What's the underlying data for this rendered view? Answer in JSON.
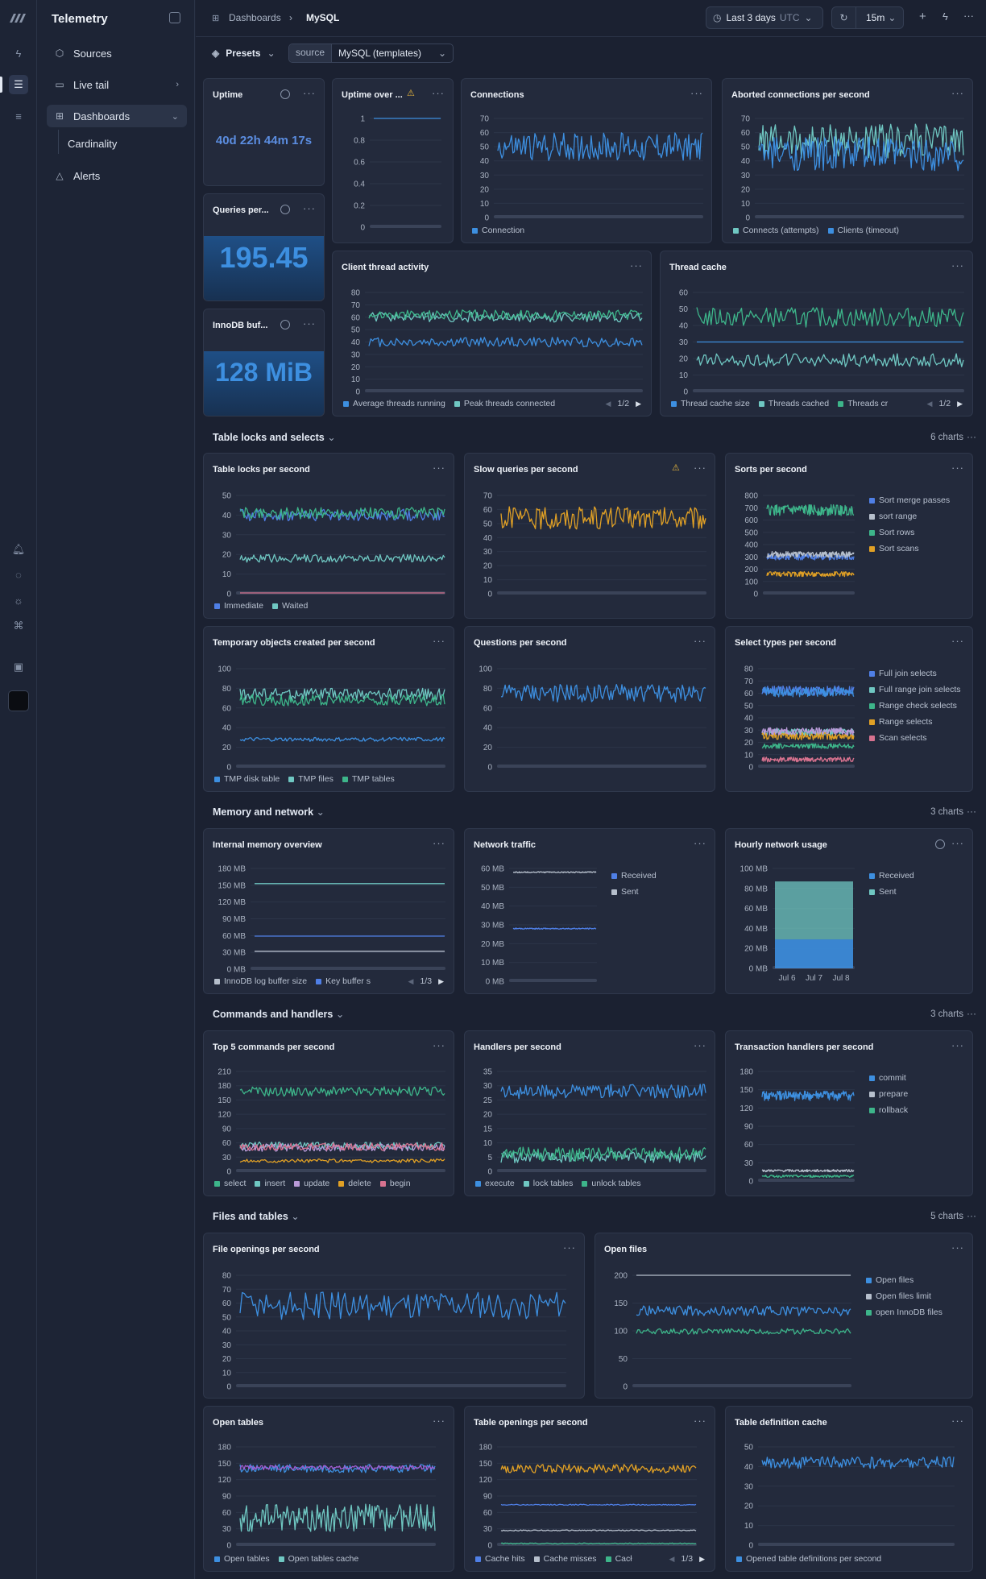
{
  "app": {
    "title": "Telemetry"
  },
  "sidebar": {
    "items": [
      {
        "label": "Sources",
        "icon": "cube-icon"
      },
      {
        "label": "Live tail",
        "icon": "terminal-icon"
      },
      {
        "label": "Dashboards",
        "icon": "dashboard-icon"
      },
      {
        "label": "Cardinality"
      },
      {
        "label": "Alerts",
        "icon": "alert-triangle-icon"
      }
    ]
  },
  "breadcrumb": {
    "parent": "Dashboards",
    "current": "MySQL",
    "separator": "›"
  },
  "toolbar": {
    "time_range": "Last 3 days",
    "timezone": "UTC",
    "refresh_interval": "15m"
  },
  "filters": {
    "presets_label": "Presets",
    "source_key": "source",
    "source_value": "MySQL (templates)"
  },
  "stats": {
    "uptime": {
      "title": "Uptime",
      "value": "40d 22h 44m 17s"
    },
    "queries": {
      "title": "Queries per...",
      "value": "195.45"
    },
    "innodb": {
      "title": "InnoDB buf...",
      "value": "128 MiB"
    }
  },
  "sections": [
    {
      "title": "Table locks and selects",
      "count": "6 charts"
    },
    {
      "title": "Memory and network",
      "count": "3 charts"
    },
    {
      "title": "Commands and handlers",
      "count": "3 charts"
    },
    {
      "title": "Files and tables",
      "count": "5 charts"
    }
  ],
  "colors": {
    "blue": "#3d8fe0",
    "royal": "#4f7fe6",
    "teal": "#6fc7c2",
    "green": "#3db58a",
    "orange": "#e0a025",
    "pink": "#d7728f",
    "lilac": "#b99ad8",
    "gray": "#b6bfcc",
    "purple": "#a35ed3",
    "magenta": "#d04aa4"
  },
  "chart_data": [
    {
      "id": "uptime_over",
      "title": "Uptime over ...",
      "type": "line",
      "yticks": [
        "1",
        "0.8",
        "0.6",
        "0.4",
        "0.2",
        "0"
      ],
      "ylim": [
        0,
        1
      ],
      "series": [
        {
          "color": "blue",
          "mean": 1,
          "amp": 0
        }
      ]
    },
    {
      "id": "connections",
      "title": "Connections",
      "type": "line",
      "yticks": [
        "70",
        "60",
        "50",
        "40",
        "30",
        "20",
        "10",
        "0"
      ],
      "ylim": [
        0,
        70
      ],
      "series": [
        {
          "name": "Connection",
          "color": "blue",
          "mean": 50,
          "amp": 10
        }
      ]
    },
    {
      "id": "aborted",
      "title": "Aborted connections per second",
      "type": "line",
      "yticks": [
        "70",
        "60",
        "50",
        "40",
        "30",
        "20",
        "10",
        "0"
      ],
      "ylim": [
        0,
        70
      ],
      "series": [
        {
          "name": "Connects (attempts)",
          "color": "teal",
          "mean": 54,
          "amp": 12
        },
        {
          "name": "Clients (timeout)",
          "color": "blue",
          "mean": 45,
          "amp": 12
        }
      ]
    },
    {
      "id": "client_thread",
      "title": "Client thread activity",
      "type": "line",
      "yticks": [
        "80",
        "70",
        "60",
        "50",
        "40",
        "30",
        "20",
        "10",
        "0"
      ],
      "ylim": [
        0,
        80
      ],
      "series": [
        {
          "name": "Average threads running",
          "color": "blue",
          "mean": 40,
          "amp": 4
        },
        {
          "name": "Peak threads connected",
          "color": "teal",
          "mean": 60,
          "amp": 4
        },
        {
          "color": "green",
          "mean": 62,
          "amp": 4
        }
      ],
      "pager": "1/2"
    },
    {
      "id": "thread_cache",
      "title": "Thread cache",
      "type": "line",
      "yticks": [
        "60",
        "50",
        "40",
        "30",
        "20",
        "10",
        "0"
      ],
      "ylim": [
        0,
        60
      ],
      "series": [
        {
          "name": "Thread cache size",
          "color": "blue",
          "mean": 30,
          "amp": 0
        },
        {
          "name": "Threads cached",
          "color": "teal",
          "mean": 19,
          "amp": 4
        },
        {
          "name": "Threads cr",
          "color": "green",
          "mean": 45,
          "amp": 6
        }
      ],
      "pager": "1/2"
    },
    {
      "id": "table_locks",
      "title": "Table locks per second",
      "type": "line",
      "yticks": [
        "50",
        "40",
        "30",
        "20",
        "10",
        "0"
      ],
      "ylim": [
        0,
        50
      ],
      "series": [
        {
          "name": "Immediate",
          "color": "royal",
          "mean": 40,
          "amp": 3
        },
        {
          "name": "Waited",
          "color": "teal",
          "mean": 18,
          "amp": 2
        },
        {
          "color": "green",
          "mean": 41,
          "amp": 3
        },
        {
          "color": "pink",
          "mean": 0.4,
          "amp": 0
        }
      ]
    },
    {
      "id": "slow_queries",
      "title": "Slow queries per second",
      "type": "line",
      "yticks": [
        "70",
        "60",
        "50",
        "40",
        "30",
        "20",
        "10",
        "0"
      ],
      "ylim": [
        0,
        70
      ],
      "series": [
        {
          "color": "orange",
          "mean": 54,
          "amp": 8
        }
      ]
    },
    {
      "id": "sorts",
      "title": "Sorts per second",
      "type": "line",
      "yticks": [
        "800",
        "700",
        "600",
        "500",
        "400",
        "300",
        "200",
        "100",
        "0"
      ],
      "ylim": [
        0,
        800
      ],
      "series": [
        {
          "name": "Sort merge passes",
          "color": "royal",
          "mean": 300,
          "amp": 25
        },
        {
          "name": "sort range",
          "color": "gray",
          "mean": 320,
          "amp": 25
        },
        {
          "name": "Sort rows",
          "color": "green",
          "mean": 680,
          "amp": 45
        },
        {
          "name": "Sort scans",
          "color": "orange",
          "mean": 160,
          "amp": 20
        }
      ]
    },
    {
      "id": "temp_objects",
      "title": "Temporary objects created per second",
      "type": "line",
      "yticks": [
        "100",
        "80",
        "60",
        "40",
        "20",
        "0"
      ],
      "ylim": [
        0,
        100
      ],
      "series": [
        {
          "name": "TMP disk table",
          "color": "blue",
          "mean": 28,
          "amp": 2
        },
        {
          "name": "TMP files",
          "color": "teal",
          "mean": 74,
          "amp": 6
        },
        {
          "name": "TMP tables",
          "color": "green",
          "mean": 68,
          "amp": 6
        }
      ]
    },
    {
      "id": "questions",
      "title": "Questions per second",
      "type": "line",
      "yticks": [
        "100",
        "80",
        "60",
        "40",
        "20",
        "0"
      ],
      "ylim": [
        0,
        100
      ],
      "series": [
        {
          "color": "blue",
          "mean": 75,
          "amp": 9
        }
      ]
    },
    {
      "id": "select_types",
      "title": "Select types per second",
      "type": "line",
      "yticks": [
        "80",
        "70",
        "60",
        "50",
        "40",
        "30",
        "20",
        "10",
        "0"
      ],
      "ylim": [
        0,
        80
      ],
      "series": [
        {
          "name": "Full join selects",
          "color": "royal",
          "mean": 62,
          "amp": 4
        },
        {
          "name": "Full range join selects",
          "color": "teal",
          "mean": 28,
          "amp": 3
        },
        {
          "name": "Range check selects",
          "color": "green",
          "mean": 17,
          "amp": 2
        },
        {
          "name": "Range selects",
          "color": "orange",
          "mean": 25,
          "amp": 3
        },
        {
          "name": "Scan selects",
          "color": "pink",
          "mean": 6,
          "amp": 2
        },
        {
          "color": "blue",
          "mean": 61,
          "amp": 4
        },
        {
          "color": "lilac",
          "mean": 29,
          "amp": 3
        }
      ]
    },
    {
      "id": "internal_memory",
      "title": "Internal memory overview",
      "type": "line",
      "yticks": [
        "180 MB",
        "150 MB",
        "120 MB",
        "90 MB",
        "60 MB",
        "30 MB",
        "0 MB"
      ],
      "ylim": [
        0,
        180
      ],
      "series": [
        {
          "name": "InnoDB log buffer size",
          "color": "gray",
          "mean": 32,
          "amp": 0
        },
        {
          "name": "Key buffer s",
          "color": "royal",
          "mean": 59,
          "amp": 0
        },
        {
          "color": "teal",
          "mean": 153,
          "amp": 0
        }
      ],
      "pager": "1/3"
    },
    {
      "id": "network_traffic",
      "title": "Network traffic",
      "type": "line",
      "yticks": [
        "60 MB",
        "50 MB",
        "40 MB",
        "30 MB",
        "20 MB",
        "10 MB",
        "0 MB"
      ],
      "ylim": [
        0,
        60
      ],
      "series": [
        {
          "name": "Received",
          "color": "royal",
          "mean": 28,
          "amp": 0.3
        },
        {
          "name": "Sent",
          "color": "gray",
          "mean": 58,
          "amp": 0.3
        }
      ]
    },
    {
      "id": "hourly_network",
      "title": "Hourly network usage",
      "type": "bar",
      "yticks": [
        "100 MB",
        "80 MB",
        "60 MB",
        "40 MB",
        "20 MB",
        "0 MB"
      ],
      "ylim": [
        0,
        100
      ],
      "xticks": [
        "Jul 6",
        "Jul 7",
        "Jul 8"
      ],
      "series": [
        {
          "name": "Received",
          "color": "blue",
          "value": 29
        },
        {
          "name": "Sent",
          "color": "teal",
          "value": 58
        }
      ]
    },
    {
      "id": "top_commands",
      "title": "Top 5 commands per second",
      "type": "line",
      "yticks": [
        "210",
        "180",
        "150",
        "120",
        "90",
        "60",
        "30",
        "0"
      ],
      "ylim": [
        0,
        210
      ],
      "series": [
        {
          "name": "select",
          "color": "green",
          "mean": 168,
          "amp": 10
        },
        {
          "name": "insert",
          "color": "teal",
          "mean": 54,
          "amp": 8
        },
        {
          "name": "update",
          "color": "lilac",
          "mean": 50,
          "amp": 8
        },
        {
          "name": "delete",
          "color": "orange",
          "mean": 22,
          "amp": 4
        },
        {
          "name": "begin",
          "color": "pink",
          "mean": 52,
          "amp": 8
        }
      ]
    },
    {
      "id": "handlers",
      "title": "Handlers per second",
      "type": "line",
      "yticks": [
        "35",
        "30",
        "25",
        "20",
        "15",
        "10",
        "5",
        "0"
      ],
      "ylim": [
        0,
        35
      ],
      "series": [
        {
          "name": "execute",
          "color": "blue",
          "mean": 28,
          "amp": 2.5
        },
        {
          "name": "lock tables",
          "color": "teal",
          "mean": 5,
          "amp": 2
        },
        {
          "name": "unlock tables",
          "color": "green",
          "mean": 6,
          "amp": 2.5
        }
      ]
    },
    {
      "id": "transaction_handlers",
      "title": "Transaction handlers per second",
      "type": "line",
      "yticks": [
        "180",
        "150",
        "120",
        "90",
        "60",
        "30",
        "0"
      ],
      "ylim": [
        0,
        180
      ],
      "series": [
        {
          "name": "commit",
          "color": "blue",
          "mean": 140,
          "amp": 8
        },
        {
          "name": "prepare",
          "color": "gray",
          "mean": 17,
          "amp": 2
        },
        {
          "name": "rollback",
          "color": "green",
          "mean": 8,
          "amp": 2
        }
      ]
    },
    {
      "id": "file_openings",
      "title": "File openings per second",
      "type": "line",
      "yticks": [
        "80",
        "70",
        "60",
        "50",
        "40",
        "30",
        "20",
        "10",
        "0"
      ],
      "ylim": [
        0,
        80
      ],
      "series": [
        {
          "color": "blue",
          "mean": 58,
          "amp": 10
        }
      ]
    },
    {
      "id": "open_files",
      "title": "Open files",
      "type": "line",
      "yticks": [
        "200",
        "150",
        "100",
        "50",
        "0"
      ],
      "ylim": [
        0,
        200
      ],
      "series": [
        {
          "name": "Open files",
          "color": "blue",
          "mean": 136,
          "amp": 9
        },
        {
          "name": "Open files limit",
          "color": "gray",
          "mean": 200,
          "amp": 0
        },
        {
          "name": "open InnoDB files",
          "color": "green",
          "mean": 99,
          "amp": 5
        }
      ]
    },
    {
      "id": "open_tables",
      "title": "Open tables",
      "type": "line",
      "yticks": [
        "180",
        "150",
        "120",
        "90",
        "60",
        "30",
        "0"
      ],
      "ylim": [
        0,
        180
      ],
      "series": [
        {
          "name": "Open tables",
          "color": "blue",
          "mean": 140,
          "amp": 8
        },
        {
          "name": "Open tables cache",
          "color": "teal",
          "mean": 50,
          "amp": 25
        },
        {
          "color": "purple",
          "mean": 142,
          "amp": 4
        }
      ]
    },
    {
      "id": "table_openings",
      "title": "Table openings per second",
      "type": "line",
      "yticks": [
        "180",
        "150",
        "120",
        "90",
        "60",
        "30",
        "0"
      ],
      "ylim": [
        0,
        180
      ],
      "series": [
        {
          "name": "Cache hits",
          "color": "royal",
          "mean": 74,
          "amp": 1
        },
        {
          "name": "Cache misses",
          "color": "gray",
          "mean": 27,
          "amp": 1
        },
        {
          "name": "Cacł",
          "color": "green",
          "mean": 3,
          "amp": 1
        },
        {
          "color": "orange",
          "mean": 140,
          "amp": 8
        }
      ],
      "pager": "1/3"
    },
    {
      "id": "table_definition",
      "title": "Table definition cache",
      "type": "line",
      "yticks": [
        "50",
        "40",
        "30",
        "20",
        "10",
        "0"
      ],
      "ylim": [
        0,
        50
      ],
      "series": [
        {
          "name": "Opened table definitions per second",
          "color": "blue",
          "mean": 42,
          "amp": 3
        }
      ]
    }
  ]
}
